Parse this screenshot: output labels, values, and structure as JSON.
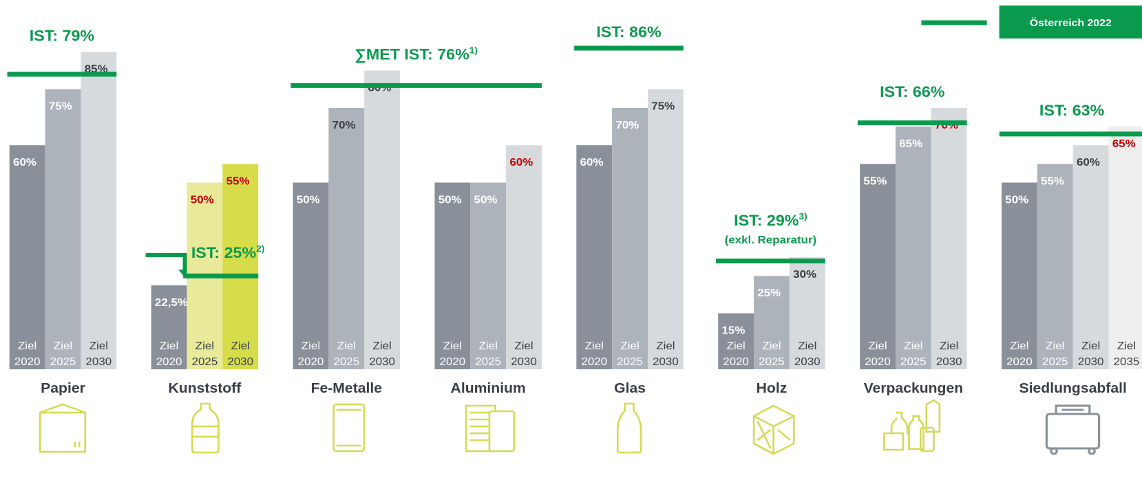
{
  "chart_data": {
    "type": "bar",
    "ylim": [
      0,
      100
    ],
    "ziel_label": "Ziel",
    "ist_color": "#0a9a4e",
    "legend": {
      "label": "Österreich 2022",
      "color": "#0a9a4e"
    },
    "groups": [
      {
        "name": "Papier",
        "categories": [
          "2020",
          "2025",
          "2030"
        ],
        "values": [
          60,
          75,
          85
        ],
        "value_labels": [
          "60%",
          "75%",
          "85%"
        ],
        "colors": [
          "#8a9099",
          "#adb3ba",
          "#d7dadd"
        ],
        "label_colors": [
          "#ffffff",
          "#ffffff",
          "#3a3f45"
        ],
        "ist": 79,
        "ist_label": "IST: 79%"
      },
      {
        "name": "Kunststoff",
        "categories": [
          "2020",
          "2025",
          "2030"
        ],
        "values": [
          22.5,
          50,
          55
        ],
        "value_labels": [
          "22,5%",
          "50%",
          "55%"
        ],
        "colors": [
          "#8a9099",
          "#e8ea9a",
          "#d6dc4a"
        ],
        "label_colors": [
          "#ffffff",
          "#c00000",
          "#c00000"
        ],
        "ist": 25,
        "ist_label": "IST: 25%",
        "ist_note": "2)",
        "ist_arrow": true
      },
      {
        "name": "Fe-Metalle",
        "categories": [
          "2020",
          "2025",
          "2030"
        ],
        "values": [
          50,
          70,
          80
        ],
        "value_labels": [
          "50%",
          "70%",
          "80%"
        ],
        "colors": [
          "#8a9099",
          "#adb3ba",
          "#d7dadd"
        ],
        "label_colors": [
          "#ffffff",
          "#3a3f45",
          "#3a3f45"
        ],
        "ist": 76,
        "ist_label": "∑MET IST: 76%",
        "ist_note": "1)"
      },
      {
        "name": "Aluminium",
        "categories": [
          "2020",
          "2025",
          "2030"
        ],
        "values": [
          50,
          50,
          60
        ],
        "value_labels": [
          "50%",
          "50%",
          "60%"
        ],
        "colors": [
          "#8a9099",
          "#adb3ba",
          "#d7dadd"
        ],
        "label_colors": [
          "#ffffff",
          "#ffffff",
          "#c00000"
        ]
      },
      {
        "name": "Glas",
        "categories": [
          "2020",
          "2025",
          "2030"
        ],
        "values": [
          60,
          70,
          75
        ],
        "value_labels": [
          "60%",
          "70%",
          "75%"
        ],
        "colors": [
          "#8a9099",
          "#adb3ba",
          "#d7dadd"
        ],
        "label_colors": [
          "#ffffff",
          "#ffffff",
          "#3a3f45"
        ],
        "ist": 86,
        "ist_label": "IST: 86%"
      },
      {
        "name": "Holz",
        "categories": [
          "2020",
          "2025",
          "2030"
        ],
        "values": [
          15,
          25,
          30
        ],
        "value_labels": [
          "15%",
          "25%",
          "30%"
        ],
        "colors": [
          "#8a9099",
          "#adb3ba",
          "#d7dadd"
        ],
        "label_colors": [
          "#ffffff",
          "#ffffff",
          "#3a3f45"
        ],
        "ist": 29,
        "ist_label": "IST: 29%",
        "ist_note": "3)",
        "ist_subtitle": "(exkl. Reparatur)"
      },
      {
        "name": "Verpackungen",
        "categories": [
          "2020",
          "2025",
          "2030"
        ],
        "values": [
          55,
          65,
          70
        ],
        "value_labels": [
          "55%",
          "65%",
          "70%"
        ],
        "colors": [
          "#8a9099",
          "#adb3ba",
          "#d7dadd"
        ],
        "label_colors": [
          "#ffffff",
          "#ffffff",
          "#c00000"
        ],
        "ist": 66,
        "ist_label": "IST: 66%"
      },
      {
        "name": "Siedlungsabfall",
        "categories": [
          "2020",
          "2025",
          "2030",
          "2035"
        ],
        "values": [
          50,
          55,
          60,
          65
        ],
        "value_labels": [
          "50%",
          "55%",
          "60%",
          "65%"
        ],
        "colors": [
          "#8a9099",
          "#adb3ba",
          "#d7dadd",
          "#eeeeee"
        ],
        "label_colors": [
          "#ffffff",
          "#ffffff",
          "#3a3f45",
          "#c00000"
        ],
        "ist": 63,
        "ist_label": "IST: 63%"
      }
    ]
  }
}
